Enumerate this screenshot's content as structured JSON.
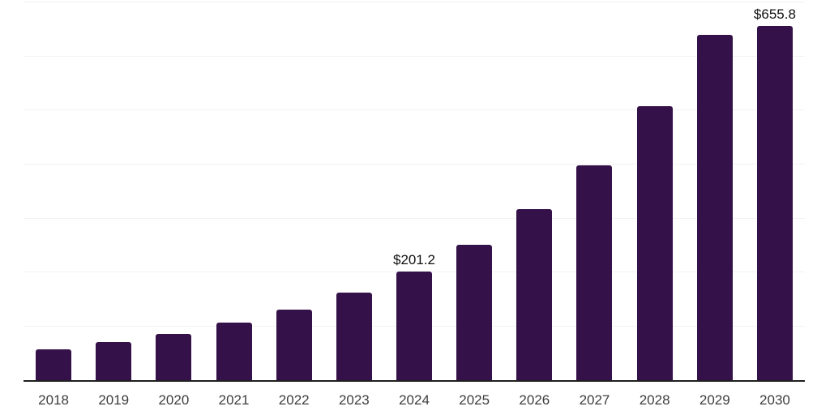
{
  "chart_data": {
    "type": "bar",
    "title": "",
    "xlabel": "",
    "ylabel": "",
    "categories": [
      "2018",
      "2019",
      "2020",
      "2021",
      "2022",
      "2023",
      "2024",
      "2025",
      "2026",
      "2027",
      "2028",
      "2029",
      "2030"
    ],
    "values": [
      57,
      70.5,
      85.5,
      106,
      130,
      161.5,
      201.2,
      251,
      317,
      398,
      507,
      639,
      655.8
    ],
    "annotations": [
      {
        "category": "2024",
        "text": "$201.2"
      },
      {
        "category": "2030",
        "text": "$655.8"
      }
    ],
    "ylim": [
      0,
      702
    ],
    "gridline_values": [
      100,
      200,
      300,
      400,
      500,
      600,
      700
    ],
    "grid": "horizontal",
    "legend": "none",
    "y_axis_labels_visible": false,
    "colors": {
      "bar": "#341148",
      "axis_line": "#1f1f1f",
      "gridline": "#f2f2f2",
      "tick_label": "#3d3d3d",
      "value_label": "#101010",
      "background": "#ffffff"
    }
  }
}
